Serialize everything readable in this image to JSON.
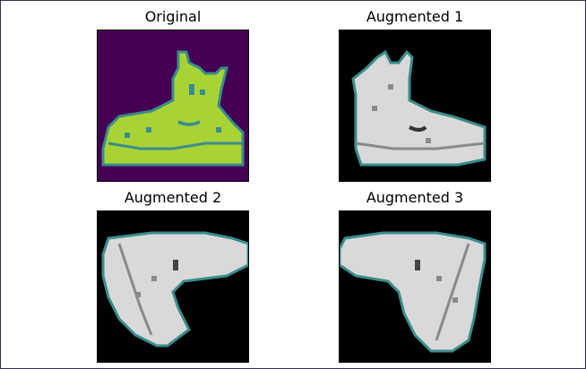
{
  "panels": [
    {
      "title": "Original",
      "colormap": "viridis"
    },
    {
      "title": "Augmented 1",
      "colormap": "gray"
    },
    {
      "title": "Augmented 2",
      "colormap": "gray"
    },
    {
      "title": "Augmented 3",
      "colormap": "gray"
    }
  ],
  "colors": {
    "viridis_bg": "#440154",
    "viridis_fg": "#a8d334",
    "viridis_edge": "#3b8c8c",
    "gray_bg": "#000000",
    "gray_fg": "#d9d9d9",
    "gray_edge": "#3b8c8c"
  }
}
